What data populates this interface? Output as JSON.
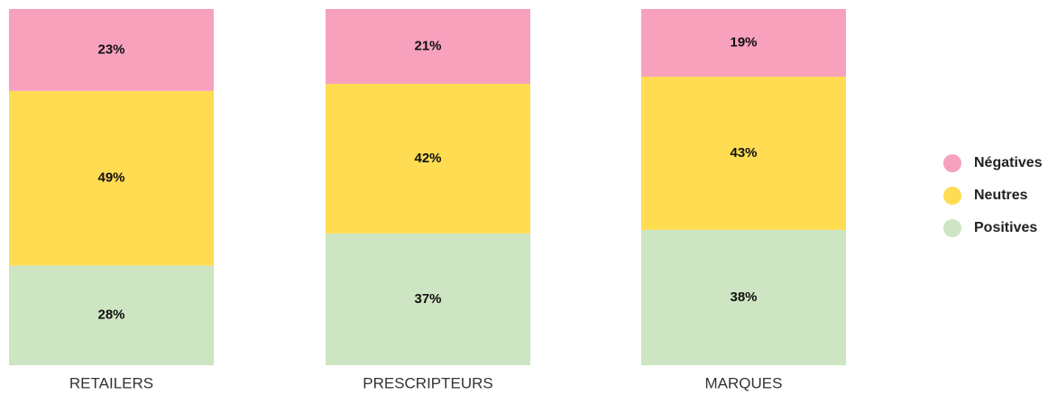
{
  "chart_data": {
    "type": "stacked_bar",
    "categories": [
      "RETAILERS",
      "PRESCRIPTEURS",
      "MARQUES"
    ],
    "series": [
      {
        "name": "Négatives",
        "color": "#f7a1bd",
        "values": [
          23,
          21,
          19
        ],
        "value_labels": [
          "23%",
          "21%",
          "19%"
        ]
      },
      {
        "name": "Neutres",
        "color": "#ffdc52",
        "values": [
          49,
          42,
          43
        ],
        "value_labels": [
          "49%",
          "42%",
          "43%"
        ]
      },
      {
        "name": "Positives",
        "color": "#cde5c2",
        "values": [
          28,
          37,
          38
        ],
        "value_labels": [
          "28%",
          "37%",
          "38%"
        ]
      }
    ],
    "legend": "right"
  }
}
